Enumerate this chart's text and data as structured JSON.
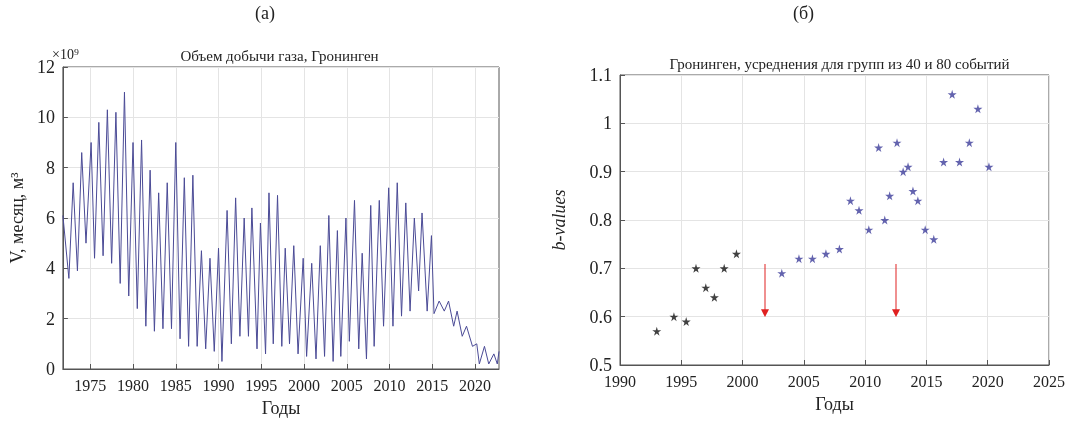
{
  "chart_data": [
    {
      "type": "line",
      "title": "(а)",
      "subtitle": "Объем добычи газа, Гронинген",
      "xlabel": "Годы",
      "ylabel": "V, месяц, м³",
      "annotations": [
        "×10⁹"
      ],
      "x": [
        1971.8,
        1972.5,
        1973.0,
        1973.5,
        1974.0,
        1974.5,
        1975.1,
        1975.5,
        1976.0,
        1976.5,
        1977.0,
        1977.5,
        1978.0,
        1978.5,
        1979.0,
        1979.5,
        1980.0,
        1980.5,
        1981.0,
        1981.5,
        1982.0,
        1982.5,
        1983.0,
        1983.5,
        1984.0,
        1984.5,
        1985.0,
        1985.5,
        1986.0,
        1986.5,
        1987.0,
        1987.5,
        1988.0,
        1988.5,
        1989.0,
        1989.5,
        1990.0,
        1990.4,
        1991.0,
        1991.5,
        1992.0,
        1992.5,
        1993.0,
        1993.5,
        1993.9,
        1994.5,
        1994.9,
        1995.5,
        1995.9,
        1996.4,
        1996.9,
        1997.4,
        1997.8,
        1998.3,
        1998.8,
        1999.3,
        1999.9,
        2000.3,
        2000.9,
        2001.4,
        2001.9,
        2002.4,
        2002.9,
        2003.4,
        2003.9,
        2004.3,
        2004.9,
        2005.3,
        2005.9,
        2006.4,
        2006.8,
        2007.3,
        2007.8,
        2008.2,
        2008.8,
        2009.3,
        2009.9,
        2010.4,
        2010.9,
        2011.4,
        2011.9,
        2012.4,
        2012.9,
        2013.4,
        2013.8,
        2014.4,
        2014.9,
        2015.2,
        2015.8,
        2016.4,
        2016.9,
        2017.5,
        2017.9,
        2018.5,
        2019.0,
        2019.7,
        2020.2,
        2020.5,
        2021.1,
        2021.6,
        2022.2,
        2022.6,
        2022.8
      ],
      "series": [
        {
          "color": "#4b4b96",
          "values": [
            6.1,
            3.6,
            7.4,
            3.9,
            8.6,
            5.0,
            9.0,
            4.4,
            9.8,
            4.5,
            10.3,
            4.2,
            10.2,
            3.4,
            11.0,
            2.9,
            9.0,
            2.4,
            9.1,
            1.7,
            7.9,
            1.5,
            7.0,
            1.6,
            7.4,
            1.6,
            9.0,
            1.2,
            7.6,
            0.9,
            7.7,
            0.9,
            4.7,
            0.8,
            4.4,
            0.7,
            4.8,
            0.3,
            6.3,
            1.0,
            6.8,
            1.3,
            6.0,
            1.3,
            6.4,
            0.8,
            5.8,
            0.6,
            7.0,
            1.0,
            6.9,
            0.9,
            4.8,
            1.0,
            4.9,
            0.6,
            4.4,
            0.5,
            4.2,
            0.4,
            4.9,
            0.5,
            6.1,
            0.3,
            5.5,
            0.5,
            6.0,
            1.1,
            6.7,
            0.8,
            4.6,
            0.4,
            6.5,
            0.9,
            6.7,
            1.7,
            7.2,
            1.7,
            7.4,
            2.1,
            6.6,
            2.3,
            6.0,
            3.1,
            6.2,
            2.3,
            5.3,
            2.2,
            2.7,
            2.3,
            2.7,
            1.7,
            2.3,
            1.3,
            1.7,
            0.9,
            1.0,
            0.2,
            0.9,
            0.2,
            0.6,
            0.2,
            0.7
          ]
        }
      ],
      "xlim": [
        1971.8,
        2022.8
      ],
      "xticks": [
        1975,
        1980,
        1985,
        1990,
        1995,
        2000,
        2005,
        2010,
        2015,
        2020
      ],
      "ylim": [
        0,
        12
      ],
      "yticks": [
        0,
        2,
        4,
        6,
        8,
        10,
        12
      ],
      "grid": true,
      "marker": "none",
      "line_style": "solid"
    },
    {
      "type": "scatter",
      "title": "(б)",
      "subtitle": "Гронинген, усреднения для групп из 40 и 80 событий",
      "xlabel": "Годы",
      "ylabel": "b-values",
      "series": [
        {
          "color": "#111111",
          "x": [
            1993.0,
            1994.4,
            1995.4,
            1996.2,
            1997.0,
            1997.7,
            1998.5,
            1999.5
          ],
          "values": [
            0.57,
            0.6,
            0.59,
            0.7,
            0.66,
            0.64,
            0.7,
            0.73
          ]
        },
        {
          "color": "#3c3c9a",
          "x": [
            2003.2,
            2004.6,
            2005.7,
            2006.8,
            2007.9,
            2008.8,
            2009.5,
            2010.3,
            2011.1,
            2011.6,
            2012.0,
            2012.6,
            2013.1,
            2013.5,
            2013.9,
            2014.3,
            2014.9,
            2015.6,
            2016.4,
            2017.1,
            2017.7,
            2018.5,
            2019.2,
            2020.1
          ],
          "values": [
            0.69,
            0.72,
            0.72,
            0.73,
            0.74,
            0.84,
            0.82,
            0.78,
            0.95,
            0.8,
            0.85,
            0.96,
            0.9,
            0.91,
            0.86,
            0.84,
            0.78,
            0.76,
            0.92,
            1.06,
            0.92,
            0.96,
            1.03,
            0.91
          ]
        }
      ],
      "xlim": [
        1990,
        2025
      ],
      "xticks": [
        1990,
        1995,
        2000,
        2005,
        2010,
        2015,
        2020,
        2025
      ],
      "ylim": [
        0.5,
        1.1
      ],
      "yticks": [
        0.5,
        0.6,
        0.7,
        0.8,
        0.9,
        1,
        1.1
      ],
      "grid": true,
      "marker": "star"
    }
  ]
}
